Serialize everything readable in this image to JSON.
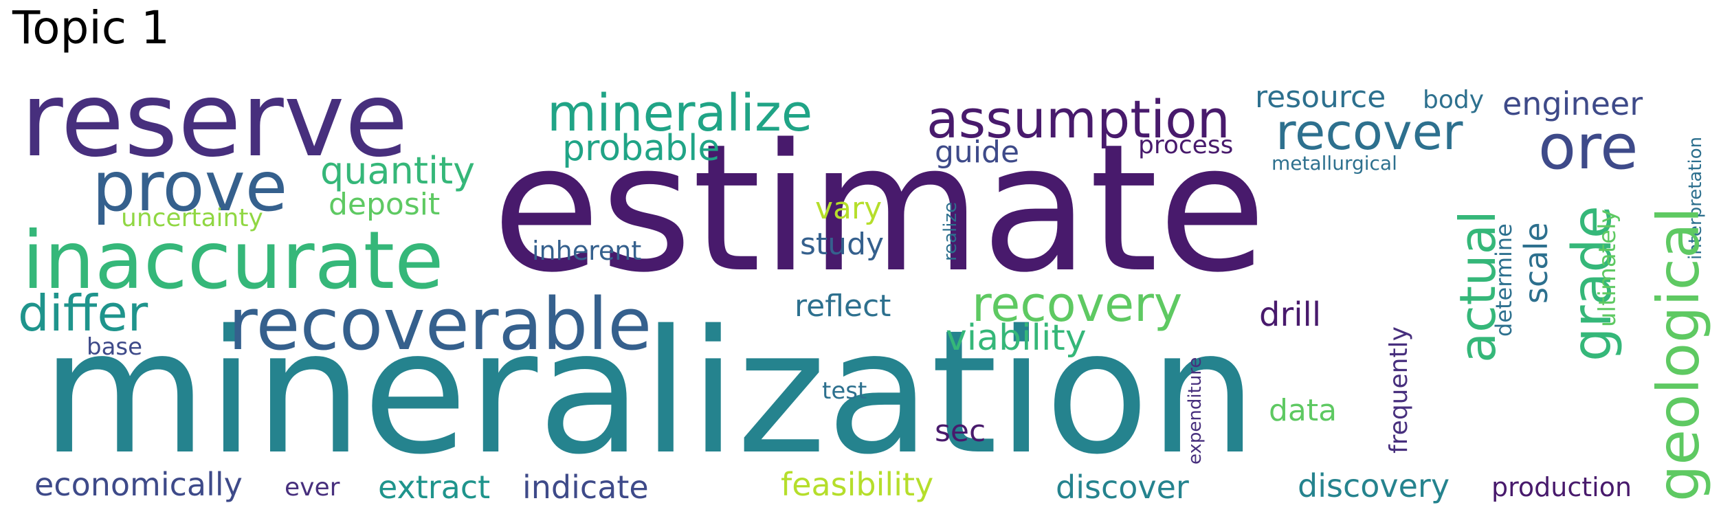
{
  "title": "Topic 1",
  "palette": {
    "dark_purple": "#481a6c",
    "purple": "#472f7d",
    "indigo": "#3e4a89",
    "slate_blue": "#35608d",
    "steel": "#2d708e",
    "teal": "#25838e",
    "teal_green": "#1f948c",
    "sea_green": "#20a486",
    "mint": "#35b779",
    "green": "#5ec962",
    "lime": "#90d743",
    "yellow_green": "#b5de2b"
  },
  "words": {
    "estimate": "estimate",
    "mineralization": "mineralization",
    "reserve": "reserve",
    "prove": "prove",
    "inaccurate": "inaccurate",
    "recoverable": "recoverable",
    "mineralize": "mineralize",
    "assumption": "assumption",
    "ore": "ore",
    "recover": "recover",
    "recovery": "recovery",
    "differ": "differ",
    "quantity": "quantity",
    "deposit": "deposit",
    "uncertainty": "uncertainty",
    "probable": "probable",
    "guide": "guide",
    "process": "process",
    "resource": "resource",
    "body": "body",
    "engineer": "engineer",
    "metallurgical": "metallurgical",
    "interpretation": "interpretation",
    "geological": "geological",
    "grade": "grade",
    "actual": "actual",
    "scale": "scale",
    "determine": "determine",
    "ultimately": "ultimately",
    "vary": "vary",
    "study": "study",
    "inherent": "inherent",
    "realize": "realize",
    "reflect": "reflect",
    "drill": "drill",
    "viability": "viability",
    "base": "base",
    "test": "test",
    "expenditure": "expenditure",
    "frequently": "frequently",
    "data": "data",
    "sec": "sec",
    "economically": "economically",
    "ever": "ever",
    "extract": "extract",
    "indicate": "indicate",
    "feasibility": "feasibility",
    "discover": "discover",
    "discovery": "discovery",
    "production": "production"
  }
}
